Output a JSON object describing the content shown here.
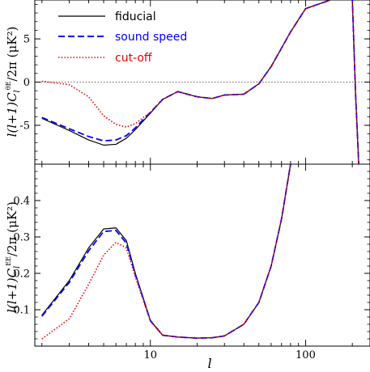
{
  "figure": {
    "xlabel": "l",
    "x_tick_labels": [
      "10",
      "100"
    ]
  },
  "chart_data": [
    {
      "type": "line",
      "ylabel_prefix": "l(l+1)C",
      "ylabel_sub": "l",
      "ylabel_sup": "θE",
      "ylabel_suffix": "/2π  (μK²)",
      "xscale": "log",
      "xlim": [
        1.8,
        260
      ],
      "ylim": [
        -9.5,
        9.5
      ],
      "y_ticks": [
        -5,
        0,
        5
      ],
      "y_tick_labels": [
        "-5",
        "0",
        "5"
      ],
      "zero_line": true,
      "legend_position": "top-left",
      "series": [
        {
          "name": "fiducial",
          "color": "#000000",
          "dash": "solid",
          "x": [
            2,
            3,
            4,
            5,
            6,
            7,
            8,
            10,
            12,
            15,
            20,
            25,
            30,
            40,
            50,
            60,
            80,
            100,
            150,
            190,
            200,
            210,
            220
          ],
          "y": [
            -4.2,
            -5.6,
            -6.7,
            -7.3,
            -7.2,
            -6.5,
            -5.5,
            -3.6,
            -2.0,
            -1.1,
            -1.7,
            -1.9,
            -1.5,
            -1.4,
            -0.2,
            1.8,
            5.8,
            8.5,
            9.6,
            9.9,
            9.6,
            -1.5,
            -9.5
          ]
        },
        {
          "name": "sound speed",
          "color": "#0000ff",
          "dash": "dashed",
          "x": [
            2,
            3,
            4,
            5,
            6,
            7,
            8,
            10,
            12,
            15,
            20,
            25,
            30,
            40,
            50,
            60,
            80,
            100,
            150,
            190,
            200,
            210,
            220
          ],
          "y": [
            -4.1,
            -5.4,
            -6.3,
            -6.8,
            -6.7,
            -6.2,
            -5.3,
            -3.5,
            -2.0,
            -1.1,
            -1.7,
            -1.9,
            -1.5,
            -1.4,
            -0.2,
            1.8,
            5.8,
            8.5,
            9.6,
            9.9,
            9.6,
            -1.5,
            -9.5
          ]
        },
        {
          "name": "cut-off",
          "color": "#ee0000",
          "dash": "dotted",
          "x": [
            2,
            3,
            4,
            5,
            6,
            7,
            8,
            10,
            12,
            15,
            20,
            25,
            30,
            40,
            50,
            60,
            80,
            100,
            150,
            190,
            200,
            210,
            220
          ],
          "y": [
            0.1,
            -0.3,
            -1.7,
            -3.9,
            -4.9,
            -5.2,
            -4.8,
            -3.5,
            -2.0,
            -1.1,
            -1.7,
            -1.9,
            -1.5,
            -1.4,
            -0.2,
            1.8,
            5.8,
            8.5,
            9.6,
            9.9,
            9.6,
            -1.5,
            -9.5
          ]
        }
      ]
    },
    {
      "type": "line",
      "ylabel_prefix": "l(l+1)C",
      "ylabel_sub": "l",
      "ylabel_sup": "EE",
      "ylabel_suffix": "/2π  (μK²)",
      "xscale": "log",
      "xlim": [
        1.8,
        260
      ],
      "ylim": [
        0.0,
        0.5
      ],
      "y_ticks": [
        0.1,
        0.2,
        0.3,
        0.4
      ],
      "y_tick_labels": [
        "0.1",
        "0.2",
        "0.3",
        "0.4"
      ],
      "series": [
        {
          "name": "fiducial",
          "color": "#000000",
          "dash": "solid",
          "x": [
            2,
            3,
            4,
            5,
            6,
            7,
            8,
            10,
            12,
            15,
            20,
            25,
            30,
            40,
            50,
            60,
            70,
            80
          ],
          "y": [
            0.085,
            0.18,
            0.27,
            0.322,
            0.325,
            0.29,
            0.2,
            0.07,
            0.03,
            0.025,
            0.022,
            0.023,
            0.028,
            0.06,
            0.12,
            0.22,
            0.35,
            0.5
          ]
        },
        {
          "name": "sound speed",
          "color": "#0000ff",
          "dash": "dashed",
          "x": [
            2,
            3,
            4,
            5,
            6,
            7,
            8,
            10,
            12,
            15,
            20,
            25,
            30,
            40,
            50,
            60,
            70,
            80
          ],
          "y": [
            0.082,
            0.175,
            0.262,
            0.315,
            0.318,
            0.283,
            0.197,
            0.07,
            0.03,
            0.025,
            0.022,
            0.023,
            0.028,
            0.06,
            0.12,
            0.22,
            0.35,
            0.5
          ]
        },
        {
          "name": "cut-off",
          "color": "#ee0000",
          "dash": "dotted",
          "x": [
            2,
            3,
            4,
            5,
            6,
            7,
            8,
            10,
            12,
            15,
            20,
            25,
            30,
            40,
            50,
            60,
            70,
            80
          ],
          "y": [
            0.02,
            0.075,
            0.17,
            0.25,
            0.285,
            0.27,
            0.19,
            0.068,
            0.03,
            0.025,
            0.022,
            0.023,
            0.028,
            0.06,
            0.12,
            0.22,
            0.35,
            0.5
          ]
        }
      ]
    }
  ]
}
